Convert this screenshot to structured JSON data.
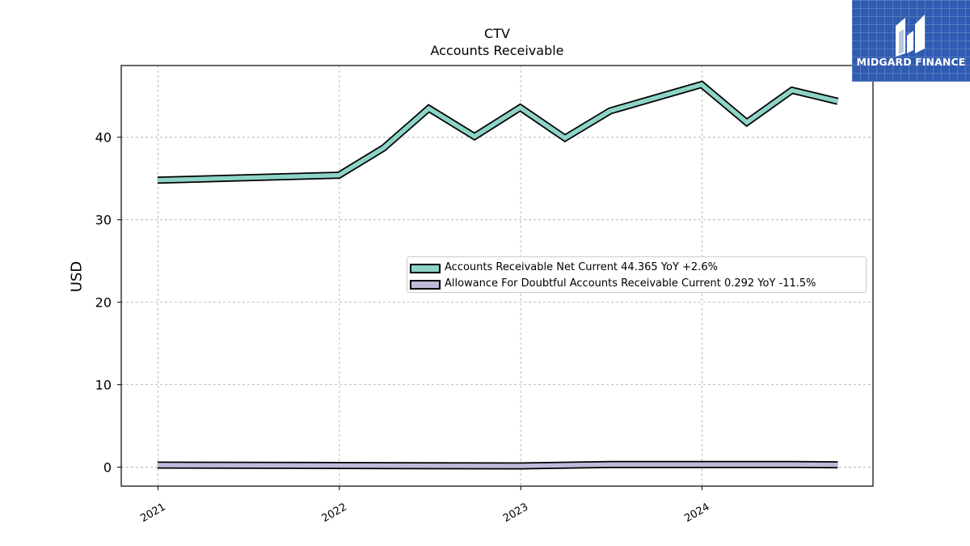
{
  "chart_data": {
    "type": "area",
    "title": "CTV",
    "subtitle": "Accounts Receivable",
    "ylabel": "USD",
    "xlabel": "",
    "ylim": [
      -2.3,
      48.7
    ],
    "xlim": [
      "2020-10-19",
      "2024-12-10"
    ],
    "yticks": [
      0,
      10,
      20,
      30,
      40
    ],
    "xticks": [
      "2021",
      "2022",
      "2023",
      "2024"
    ],
    "grid": true,
    "legend_position": "center-right",
    "series": [
      {
        "name": "Accounts Receivable Net Current  44.365 YoY +2.6%",
        "color": "#8dd3c7",
        "x": [
          "2020-12-31",
          "2021-12-31",
          "2022-03-31",
          "2022-06-30",
          "2022-09-30",
          "2022-12-31",
          "2023-03-31",
          "2023-06-30",
          "2023-12-31",
          "2024-03-31",
          "2024-06-30",
          "2024-09-30"
        ],
        "values": [
          34.8,
          35.4,
          38.7,
          43.5,
          40.1,
          43.6,
          39.9,
          43.2,
          46.4,
          41.8,
          45.7,
          44.365
        ]
      },
      {
        "name": "Allowance For Doubtful Accounts Receivable Current  0.292 YoY -11.5%",
        "color": "#bebada",
        "x": [
          "2020-12-31",
          "2021-12-31",
          "2022-12-31",
          "2023-06-30",
          "2023-12-31",
          "2024-06-30",
          "2024-09-30"
        ],
        "values": [
          0.25,
          0.2,
          0.15,
          0.33,
          0.33,
          0.33,
          0.292
        ]
      }
    ]
  },
  "brand": {
    "name": "MIDGARD FINANCE",
    "bg_color": "#2f5bb0"
  }
}
